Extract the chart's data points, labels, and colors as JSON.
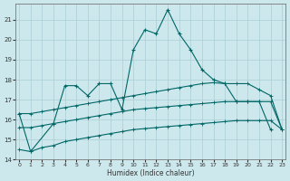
{
  "main_line_x": [
    0,
    1,
    3,
    4,
    5,
    6,
    7,
    8,
    9,
    10,
    11,
    12,
    13,
    14,
    15,
    16,
    17,
    18,
    19,
    20,
    21,
    22
  ],
  "main_line_y": [
    16.3,
    14.4,
    15.8,
    17.7,
    17.7,
    17.2,
    17.8,
    17.8,
    16.5,
    19.5,
    20.5,
    20.3,
    21.5,
    20.3,
    19.5,
    18.5,
    18.0,
    17.8,
    16.9,
    16.9,
    16.9,
    15.5
  ],
  "line_bottom_x": [
    0,
    1,
    2,
    3,
    4,
    5,
    6,
    7,
    8,
    9,
    10,
    11,
    12,
    13,
    14,
    15,
    16,
    17,
    18,
    19,
    20,
    21,
    22,
    23
  ],
  "line_bottom_y": [
    14.5,
    14.4,
    14.6,
    14.7,
    14.9,
    15.0,
    15.1,
    15.2,
    15.3,
    15.4,
    15.5,
    15.55,
    15.6,
    15.65,
    15.7,
    15.75,
    15.8,
    15.85,
    15.9,
    15.95,
    15.95,
    15.95,
    15.95,
    15.5
  ],
  "line_mid_x": [
    0,
    1,
    2,
    3,
    4,
    5,
    6,
    7,
    8,
    9,
    10,
    11,
    12,
    13,
    14,
    15,
    16,
    17,
    18,
    19,
    20,
    21,
    22,
    23
  ],
  "line_mid_y": [
    15.6,
    15.6,
    15.7,
    15.8,
    15.9,
    16.0,
    16.1,
    16.2,
    16.3,
    16.4,
    16.5,
    16.55,
    16.6,
    16.65,
    16.7,
    16.75,
    16.8,
    16.85,
    16.9,
    16.9,
    16.9,
    16.9,
    16.9,
    15.5
  ],
  "line_top_x": [
    0,
    1,
    2,
    3,
    4,
    5,
    6,
    7,
    8,
    9,
    10,
    11,
    12,
    13,
    14,
    15,
    16,
    17,
    18,
    19,
    20,
    21,
    22,
    23
  ],
  "line_top_y": [
    16.3,
    16.3,
    16.4,
    16.5,
    16.6,
    16.7,
    16.8,
    16.9,
    17.0,
    17.1,
    17.2,
    17.3,
    17.4,
    17.5,
    17.6,
    17.7,
    17.8,
    17.85,
    17.8,
    17.8,
    17.8,
    17.5,
    17.2,
    15.5
  ],
  "ylim": [
    14,
    21.8
  ],
  "xlim": [
    -0.3,
    23.3
  ],
  "yticks": [
    14,
    15,
    16,
    17,
    18,
    19,
    20,
    21
  ],
  "xticks": [
    0,
    1,
    2,
    3,
    4,
    5,
    6,
    7,
    8,
    9,
    10,
    11,
    12,
    13,
    14,
    15,
    16,
    17,
    18,
    19,
    20,
    21,
    22,
    23
  ],
  "xlabel": "Humidex (Indice chaleur)",
  "bg_color": "#cde8ec",
  "line_color": "#006666",
  "grid_color": "#aacdd4"
}
